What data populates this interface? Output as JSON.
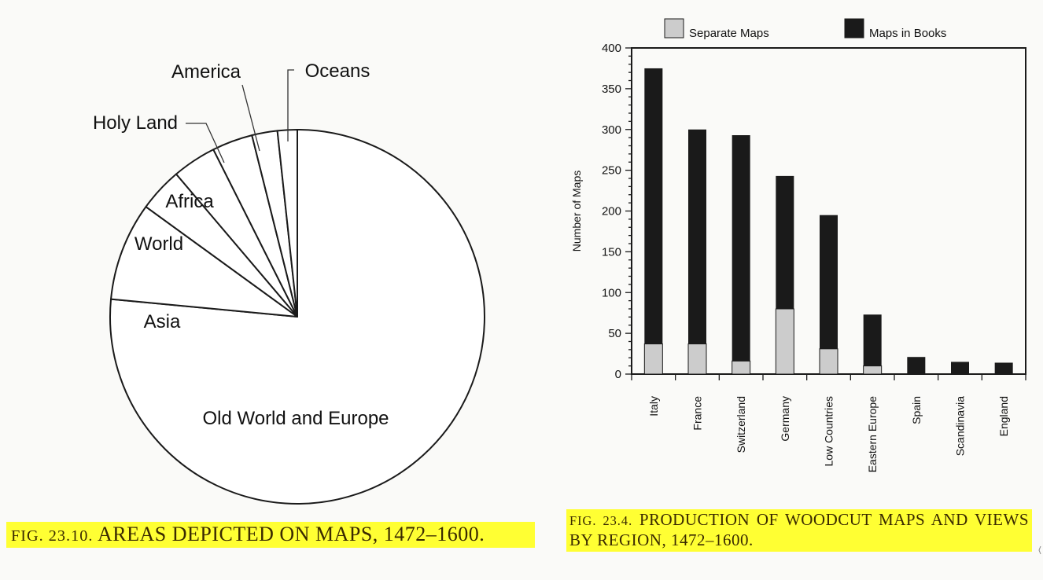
{
  "chart_data": [
    {
      "type": "pie",
      "title": "",
      "slices": [
        {
          "label": "Old World and Europe",
          "value": 76.5
        },
        {
          "label": "Asia",
          "value": 8.5
        },
        {
          "label": "World",
          "value": 3.8
        },
        {
          "label": "Africa",
          "value": 3.8
        },
        {
          "label": "Holy Land",
          "value": 3.5
        },
        {
          "label": "America",
          "value": 2.2
        },
        {
          "label": "Oceans",
          "value": 1.7
        }
      ]
    },
    {
      "type": "bar",
      "stacked": true,
      "title": "",
      "xlabel": "",
      "ylabel": "Number of Maps",
      "ylim": [
        0,
        400
      ],
      "yticks": [
        0,
        50,
        100,
        150,
        200,
        250,
        300,
        350,
        400
      ],
      "categories": [
        "Italy",
        "France",
        "Switzerland",
        "Germany",
        "Low Countries",
        "Eastern Europe",
        "Spain",
        "Scandinavia",
        "England"
      ],
      "series": [
        {
          "name": "Separate Maps",
          "color": "#cccccc",
          "values": [
            37,
            37,
            16,
            80,
            31,
            10,
            0,
            0,
            0
          ]
        },
        {
          "name": "Maps in Books",
          "color": "#1a1a1a",
          "values": [
            338,
            263,
            277,
            163,
            164,
            63,
            21,
            15,
            14
          ]
        }
      ],
      "legend": [
        {
          "label": "Separate Maps",
          "color": "#cccccc"
        },
        {
          "label": "Maps in Books",
          "color": "#1a1a1a"
        }
      ],
      "legend_position": "top"
    }
  ],
  "captions": {
    "pie": {
      "fig": "FIG. 23.10.",
      "text": "AREAS DEPICTED ON MAPS, 1472–1600."
    },
    "bar": {
      "fig": "FIG. 23.4.",
      "text": "PRODUCTION OF WOODCUT MAPS AND VIEWS BY REGION, 1472–1600."
    }
  }
}
